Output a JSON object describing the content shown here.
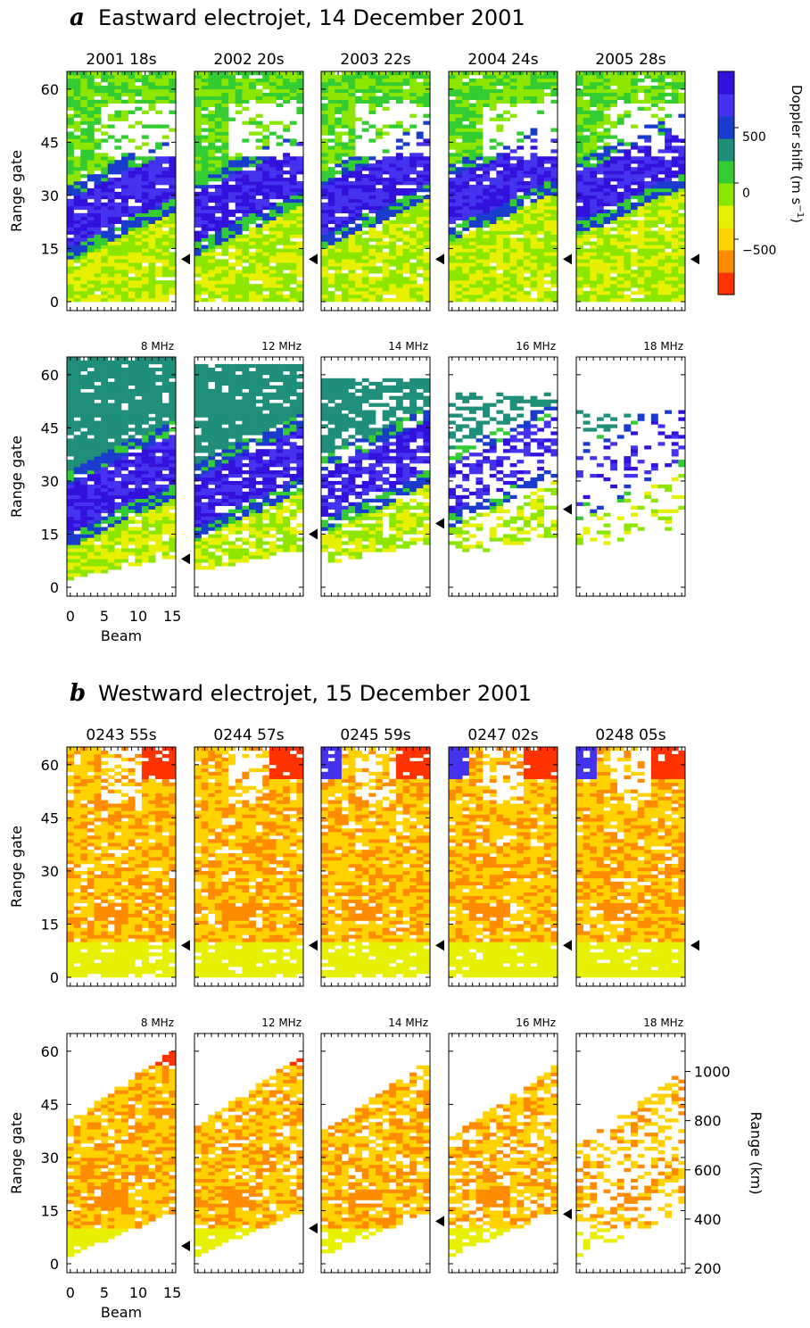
{
  "figure": {
    "colorbar": {
      "label": "Doppler shift (m s",
      "label_sup": "−1",
      "label_close": ")",
      "tick_labels": [
        "500",
        "0",
        "−500"
      ],
      "ticks": [
        500,
        0,
        -500
      ],
      "range": [
        -900,
        900
      ],
      "colors": [
        "#ff3300",
        "#ff8c00",
        "#ffd200",
        "#e6f000",
        "#8ce600",
        "#33cc33",
        "#1f8f7a",
        "#1a3ccc",
        "#4433ee",
        "#3311dd"
      ]
    },
    "axes_text": {
      "y_label": "Range gate",
      "x_label": "Beam",
      "y_ticks": [
        "0",
        "15",
        "30",
        "45",
        "60"
      ],
      "x_ticks": [
        "0",
        "5",
        "10",
        "15"
      ],
      "right_label": "Range (km)",
      "right_ticks": [
        "200",
        "400",
        "600",
        "800",
        "1000"
      ]
    }
  },
  "chart_data": [
    {
      "type": "heatmap",
      "panel": "a",
      "title": "Eastward electrojet, 14 December 2001",
      "xlabel": "Beam",
      "ylabel": "Range gate",
      "xlim": [
        0,
        15
      ],
      "ylim": [
        0,
        65
      ],
      "colorbar_label": "Doppler shift (m s−1)",
      "scans": [
        {
          "time": "2001  18s",
          "frequency": "8 MHz",
          "marker_gate_top": 12,
          "marker_gate_bottom": 8
        },
        {
          "time": "2002  20s",
          "frequency": "12 MHz",
          "marker_gate_top": 12,
          "marker_gate_bottom": 15
        },
        {
          "time": "2003  22s",
          "frequency": "14 MHz",
          "marker_gate_top": 12,
          "marker_gate_bottom": 18
        },
        {
          "time": "2004  24s",
          "frequency": "16 MHz",
          "marker_gate_top": 12,
          "marker_gate_bottom": 22
        },
        {
          "time": "2005  28s",
          "frequency": "18 MHz",
          "marker_gate_top": 12,
          "marker_gate_bottom": null
        }
      ]
    },
    {
      "type": "heatmap",
      "panel": "b",
      "title": "Westward electrojet, 15 December 2001",
      "xlabel": "Beam",
      "ylabel": "Range gate",
      "xlim": [
        0,
        15
      ],
      "ylim": [
        0,
        65
      ],
      "right_axis_label": "Range (km)",
      "scans": [
        {
          "time": "0243  55s",
          "frequency": "8 MHz",
          "marker_gate_top": 9,
          "marker_gate_bottom": 5
        },
        {
          "time": "0244  57s",
          "frequency": "12 MHz",
          "marker_gate_top": 9,
          "marker_gate_bottom": 10
        },
        {
          "time": "0245  59s",
          "frequency": "14 MHz",
          "marker_gate_top": 9,
          "marker_gate_bottom": 12
        },
        {
          "time": "0247  02s",
          "frequency": "16 MHz",
          "marker_gate_top": 9,
          "marker_gate_bottom": 14
        },
        {
          "time": "0248  05s",
          "frequency": "18 MHz",
          "marker_gate_top": 9,
          "marker_gate_bottom": null
        }
      ]
    }
  ]
}
